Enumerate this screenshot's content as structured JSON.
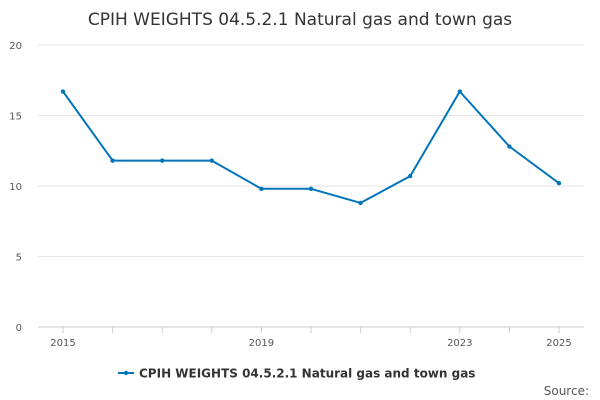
{
  "chart_data": {
    "type": "line",
    "title": "CPIH WEIGHTS 04.5.2.1 Natural gas and town gas",
    "xlabel": "",
    "ylabel": "",
    "x": [
      2015,
      2016,
      2017,
      2018,
      2019,
      2020,
      2021,
      2022,
      2023,
      2024,
      2025
    ],
    "x_tick_labels": [
      "2015",
      "2019",
      "2023",
      "2025"
    ],
    "x_tick_label_years": [
      2015,
      2019,
      2023,
      2025
    ],
    "ylim": [
      0,
      20
    ],
    "y_ticks": [
      0,
      5,
      10,
      15,
      20
    ],
    "grid": true,
    "legend_position": "bottom",
    "series": [
      {
        "name": "CPIH WEIGHTS 04.5.2.1 Natural gas and town gas",
        "color": "#0075b9",
        "values": [
          16.7,
          11.8,
          11.8,
          11.8,
          9.8,
          9.8,
          8.8,
          10.7,
          16.7,
          12.8,
          10.2
        ]
      }
    ]
  },
  "source_label": "Source:"
}
